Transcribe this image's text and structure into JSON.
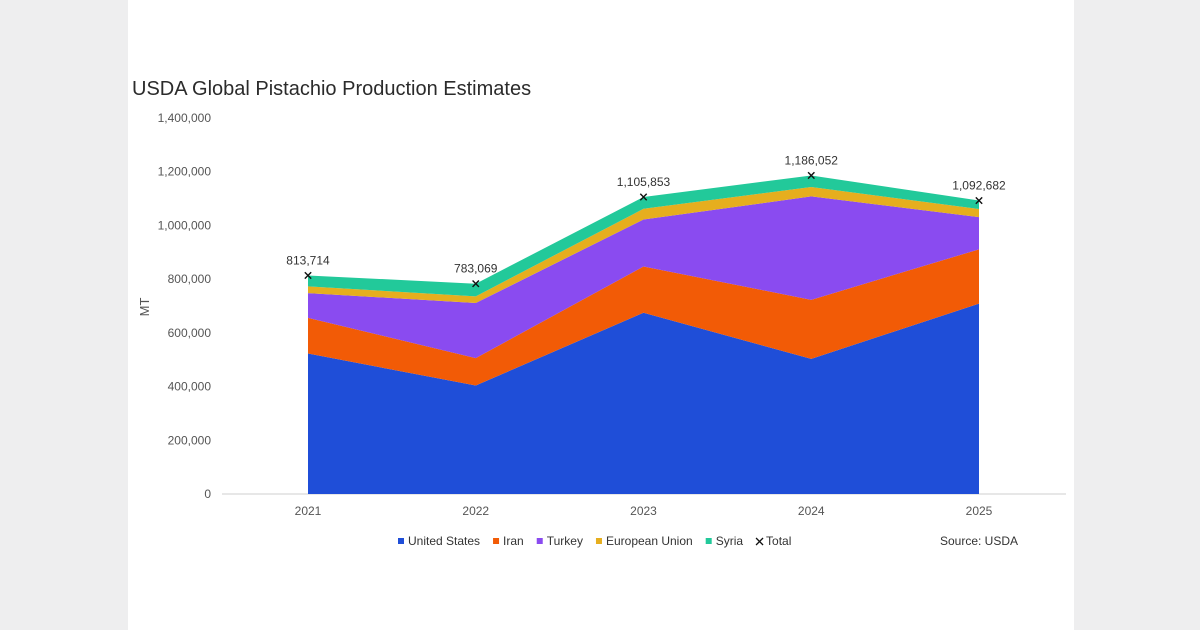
{
  "chart_data": {
    "type": "area",
    "title": "USDA Global Pistachio Production Estimates",
    "ylabel": "MT",
    "xlabel": "",
    "ylim": [
      0,
      1400000
    ],
    "yticks": [
      0,
      200000,
      400000,
      600000,
      800000,
      1000000,
      1200000,
      1400000
    ],
    "ytick_labels": [
      "0",
      "200,000",
      "400,000",
      "600,000",
      "800,000",
      "1,000,000",
      "1,200,000",
      "1,400,000"
    ],
    "categories": [
      "2021",
      "2022",
      "2023",
      "2024",
      "2025"
    ],
    "stacked": true,
    "series": [
      {
        "name": "United States",
        "color": "#1f4ed8",
        "values": [
          523000,
          404000,
          675000,
          503000,
          709000
        ]
      },
      {
        "name": "Iran",
        "color": "#f25b06",
        "values": [
          133000,
          102000,
          172000,
          220000,
          202000
        ]
      },
      {
        "name": "Turkey",
        "color": "#8a4bf0",
        "values": [
          92000,
          205000,
          175000,
          385000,
          120000
        ]
      },
      {
        "name": "European Union",
        "color": "#e6ae1e",
        "values": [
          25000,
          25000,
          40000,
          35000,
          30000
        ]
      },
      {
        "name": "Syria",
        "color": "#22c99a",
        "values": [
          40714,
          47069,
          43853,
          43052,
          31682
        ]
      }
    ],
    "total": {
      "name": "Total",
      "values": [
        813714,
        783069,
        1105853,
        1186052,
        1092682
      ],
      "labels": [
        "813,714",
        "783,069",
        "1,105,853",
        "1,186,052",
        "1,092,682"
      ]
    },
    "legend_position": "bottom",
    "source": "Source: USDA"
  }
}
